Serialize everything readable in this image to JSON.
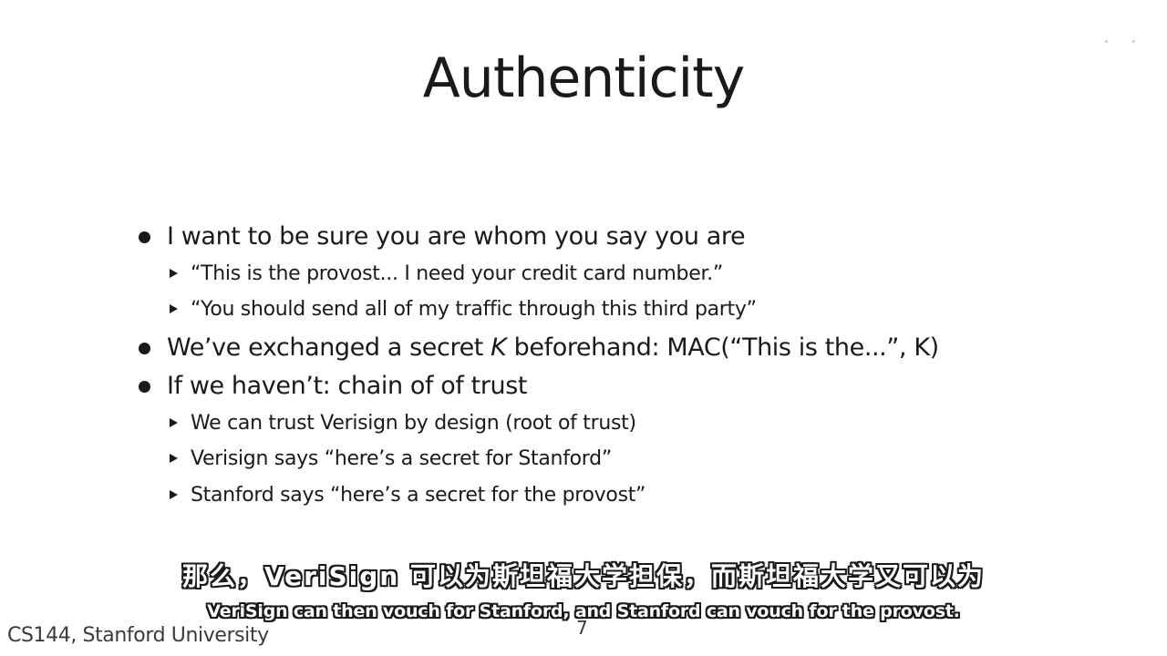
{
  "slide": {
    "title": "Authenticity",
    "bullets": [
      {
        "text": "I want to be sure you are whom you say you are",
        "subs": [
          "“This is the provost... I need your credit card number.”",
          "“You should send all of my traffic through this third party”"
        ]
      },
      {
        "text_before": "We’ve exchanged a secret ",
        "text_italic": "K",
        "text_after": " beforehand: MAC(“This is the...”, K)",
        "subs": []
      },
      {
        "text": "If we haven’t: chain of of trust",
        "subs": [
          "We can trust Verisign by design (root of trust)",
          "Verisign says “here’s a secret for Stanford”",
          "Stanford says “here’s a secret for the provost”"
        ]
      }
    ]
  },
  "subtitles": {
    "zh": "那么，VeriSign 可以为斯坦福大学担保，而斯坦福大学又可以为",
    "en": "VeriSign can then vouch for Stanford, and Stanford can vouch for the provost."
  },
  "footer": {
    "course": "CS144, Stanford University",
    "page": "7"
  },
  "colors": {
    "text": "#1a1a1a",
    "background": "#ffffff",
    "subtitle_fill": "#ffffff",
    "subtitle_outline": "#1a1a1a"
  }
}
